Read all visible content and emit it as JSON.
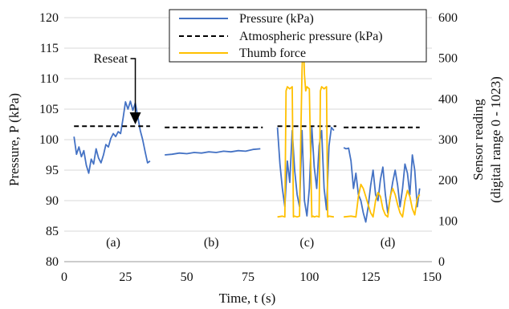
{
  "chart_data": {
    "type": "line",
    "title": "",
    "xlabel": "Time, t  (s)",
    "ylabel_left": "Pressure, P (kPa)",
    "ylabel_right_line1": "Sensor reading",
    "ylabel_right_line2": "(digital range  0 - 1023)",
    "xlim": [
      0,
      150
    ],
    "ylim_left": [
      80,
      120
    ],
    "ylim_right": [
      0,
      600
    ],
    "x_ticks": [
      0,
      25,
      50,
      75,
      100,
      125,
      150
    ],
    "y_left_ticks": [
      80,
      85,
      90,
      95,
      100,
      105,
      110,
      115,
      120
    ],
    "y_right_ticks": [
      0,
      100,
      200,
      300,
      400,
      500,
      600
    ],
    "grid": "horizontal",
    "legend_position": "top-right",
    "colors": {
      "pressure": "#4472c4",
      "atmospheric": "#000000",
      "thumb_force": "#ffc000"
    },
    "series": [
      {
        "name": "Pressure (kPa)",
        "axis": "left",
        "style": "solid",
        "segments": [
          {
            "x": [
              4,
              5,
              6,
              7,
              8,
              9,
              10,
              11,
              12,
              13,
              14,
              15,
              16,
              17,
              18,
              19,
              20,
              21,
              22,
              23,
              24,
              25,
              26,
              27,
              28,
              29,
              30,
              31,
              32,
              33,
              34,
              35
            ],
            "y": [
              100.5,
              97.6,
              98.8,
              97.2,
              98.2,
              95.8,
              94.5,
              96.8,
              96.0,
              98.5,
              97.0,
              96.2,
              97.5,
              99.2,
              98.8,
              100.2,
              101.0,
              100.5,
              101.3,
              101.0,
              103.5,
              106.2,
              105.0,
              106.3,
              104.8,
              106.0,
              103.8,
              101.5,
              100.0,
              98.0,
              96.2,
              96.5
            ]
          },
          {
            "x": [
              41,
              44,
              47,
              50,
              53,
              56,
              59,
              62,
              65,
              68,
              71,
              74,
              77,
              80
            ],
            "y": [
              97.5,
              97.6,
              97.8,
              97.7,
              97.9,
              97.8,
              98.0,
              97.9,
              98.1,
              98.0,
              98.2,
              98.1,
              98.4,
              98.5
            ]
          },
          {
            "x": [
              87,
              88,
              89,
              90,
              91,
              92,
              93,
              94,
              95,
              96,
              97,
              98,
              99,
              100,
              101,
              102,
              103,
              104,
              105,
              106,
              107,
              108,
              109,
              110
            ],
            "y": [
              102.0,
              96.0,
              92.0,
              89.0,
              96.5,
              93.0,
              101.5,
              95.0,
              91.0,
              89.0,
              101.5,
              90.0,
              87.5,
              92.0,
              102.0,
              95.5,
              92.0,
              99.0,
              101.5,
              92.0,
              88.5,
              99.0,
              102.0,
              101.5
            ]
          },
          {
            "x": [
              114,
              115,
              116,
              117,
              118,
              119,
              120,
              121,
              122,
              123,
              124,
              125,
              126,
              127,
              128,
              129,
              130,
              131,
              132,
              133,
              134,
              135,
              136,
              137,
              138,
              139,
              140,
              141,
              142,
              143,
              144,
              145
            ],
            "y": [
              98.7,
              98.5,
              98.6,
              96.5,
              92.0,
              94.5,
              91.0,
              90.0,
              88.0,
              86.5,
              89.0,
              92.5,
              95.0,
              91.0,
              90.0,
              93.5,
              95.5,
              91.0,
              88.0,
              90.5,
              93.0,
              95.0,
              92.5,
              89.0,
              92.0,
              96.0,
              94.5,
              91.0,
              97.5,
              95.0,
              89.0,
              92.0
            ]
          }
        ]
      },
      {
        "name": "Atmospheric pressure (kPa)",
        "axis": "left",
        "style": "dashed",
        "segments": [
          {
            "x": [
              4,
              35
            ],
            "y": [
              102.2,
              102.2
            ]
          },
          {
            "x": [
              41,
              81
            ],
            "y": [
              102.0,
              102.0
            ]
          },
          {
            "x": [
              87,
              111
            ],
            "y": [
              102.2,
              102.2
            ]
          },
          {
            "x": [
              114,
              145
            ],
            "y": [
              102.0,
              102.0
            ]
          }
        ]
      },
      {
        "name": "Thumb force",
        "axis": "right",
        "style": "solid",
        "segments": [
          {
            "x": [
              87,
              89,
              90,
              90.5,
              91,
              92,
              93,
              93.5,
              94,
              95,
              96,
              96.5,
              97,
              97.5,
              98,
              98.5,
              99,
              100,
              101,
              101.5,
              102,
              103,
              104,
              104.5,
              105,
              106,
              107,
              107.5,
              108,
              110
            ],
            "y": [
              110,
              112,
              110,
              420,
              430,
              425,
              430,
              110,
              112,
              110,
              112,
              300,
              470,
              560,
              460,
              420,
              430,
              425,
              110,
              112,
              110,
              112,
              110,
              420,
              430,
              425,
              430,
              110,
              112,
              110
            ]
          },
          {
            "x": [
              114,
              117,
              119,
              120,
              121,
              122,
              123,
              124,
              125,
              126,
              127,
              128,
              129,
              130,
              131,
              132,
              133,
              134,
              135,
              136,
              137,
              138,
              139,
              140,
              141,
              142,
              143,
              144,
              145
            ],
            "y": [
              110,
              112,
              110,
              160,
              190,
              180,
              160,
              140,
              120,
              110,
              150,
              170,
              160,
              130,
              115,
              110,
              160,
              180,
              165,
              140,
              120,
              110,
              150,
              175,
              160,
              130,
              115,
              155,
              165
            ]
          }
        ]
      }
    ],
    "annotations": [
      {
        "text": "Reseat",
        "x": 29,
        "y": 102.5
      }
    ],
    "panel_labels": [
      {
        "text": "(a)",
        "x": 20
      },
      {
        "text": "(b)",
        "x": 60
      },
      {
        "text": "(c)",
        "x": 99
      },
      {
        "text": "(d)",
        "x": 132
      }
    ]
  }
}
